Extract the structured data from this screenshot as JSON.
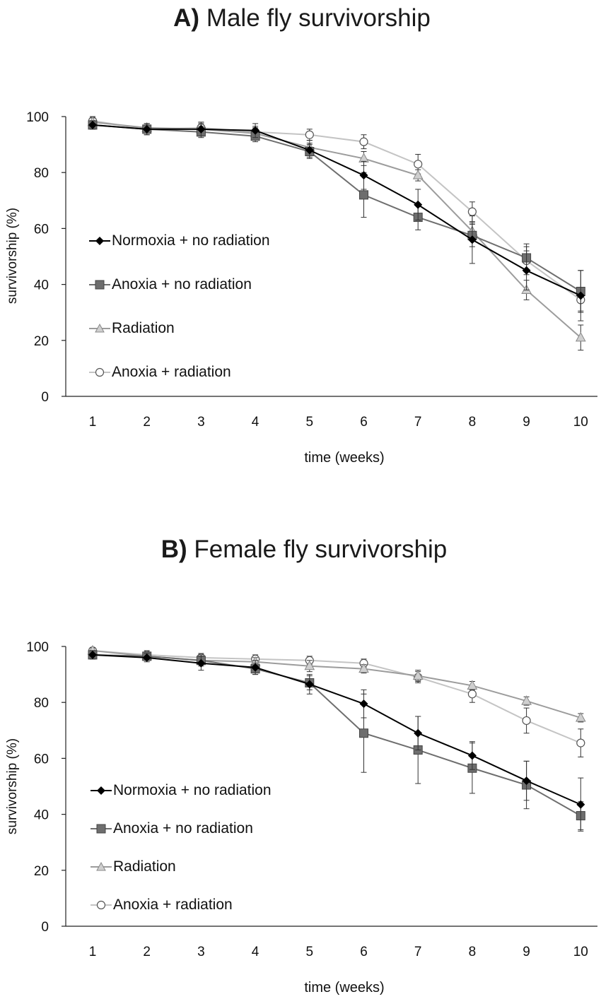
{
  "chart_data": [
    {
      "type": "line",
      "panel_letter": "A)",
      "title": "Male fly survivorship",
      "xlabel": "time (weeks)",
      "ylabel": "survivorship (%)",
      "x": [
        1,
        2,
        3,
        4,
        5,
        6,
        7,
        8,
        9,
        10
      ],
      "ylim": [
        0,
        100
      ],
      "yticks": [
        0,
        20,
        40,
        60,
        80,
        100
      ],
      "grid": false,
      "legend_position": "left-middle",
      "series": [
        {
          "name": "Normoxia + no radiation",
          "marker": "diamond",
          "color": "#000000",
          "marker_fill": "#000000",
          "values": [
            97,
            95.5,
            95.5,
            95,
            88,
            79,
            68.5,
            56,
            45,
            36
          ],
          "errors": [
            1.5,
            2,
            2.5,
            2.5,
            2.5,
            5,
            5.5,
            8.5,
            7,
            9
          ]
        },
        {
          "name": "Anoxia + no radiation",
          "marker": "square",
          "color": "#6e6e6e",
          "marker_fill": "#6e6e6e",
          "values": [
            97,
            95.5,
            94.5,
            93,
            87.5,
            72,
            64,
            57.5,
            49.5,
            37.5
          ],
          "errors": [
            1.5,
            1.5,
            2,
            2,
            2.5,
            8,
            4.5,
            4,
            5,
            7.5
          ]
        },
        {
          "name": "Radiation",
          "marker": "triangle",
          "color": "#9c9c9c",
          "marker_fill": "#cfcfcf",
          "values": [
            98,
            96,
            95.5,
            94,
            89,
            85,
            79,
            59,
            38,
            21
          ],
          "errors": [
            1.5,
            1.5,
            2,
            2,
            2.5,
            2.5,
            2,
            3,
            3.5,
            4.5
          ]
        },
        {
          "name": "Anoxia + radiation",
          "marker": "circle",
          "color": "#c4c4c4",
          "marker_fill": "#ffffff",
          "values": [
            98.5,
            95.5,
            96,
            94.5,
            93.5,
            91,
            83,
            66,
            48.5,
            34.5
          ],
          "errors": [
            1.5,
            2,
            2,
            2,
            2,
            2.5,
            3.5,
            3.5,
            5,
            4
          ]
        }
      ]
    },
    {
      "type": "line",
      "panel_letter": "B)",
      "title": "Female fly survivorship",
      "xlabel": "time (weeks)",
      "ylabel": "survivorship (%)",
      "x": [
        1,
        2,
        3,
        4,
        5,
        6,
        7,
        8,
        9,
        10
      ],
      "ylim": [
        0,
        100
      ],
      "yticks": [
        0,
        20,
        40,
        60,
        80,
        100
      ],
      "grid": false,
      "legend_position": "left-bottom",
      "series": [
        {
          "name": "Normoxia + no radiation",
          "marker": "diamond",
          "color": "#000000",
          "marker_fill": "#000000",
          "values": [
            97,
            96,
            94,
            92.5,
            86.5,
            79.5,
            69,
            61,
            52,
            43.5
          ],
          "errors": [
            1.5,
            1.5,
            2.5,
            2.5,
            3.5,
            5,
            6,
            5,
            7,
            9.5
          ]
        },
        {
          "name": "Anoxia + no radiation",
          "marker": "square",
          "color": "#6e6e6e",
          "marker_fill": "#6e6e6e",
          "values": [
            97,
            96.5,
            95,
            92,
            87,
            69,
            63,
            56.5,
            50.5,
            39.5
          ],
          "errors": [
            1.5,
            1.5,
            2,
            2,
            2.5,
            14,
            12,
            9,
            8.5,
            5
          ]
        },
        {
          "name": "Radiation",
          "marker": "triangle",
          "color": "#9c9c9c",
          "marker_fill": "#cfcfcf",
          "values": [
            98.5,
            96.5,
            95,
            94.5,
            93,
            92,
            89.5,
            86,
            80.5,
            74.5
          ],
          "errors": [
            1,
            1.5,
            1.5,
            1.5,
            2,
            1.5,
            2,
            1.5,
            1.5,
            1.5
          ]
        },
        {
          "name": "Anoxia + radiation",
          "marker": "circle",
          "color": "#c4c4c4",
          "marker_fill": "#ffffff",
          "values": [
            98.5,
            97,
            96,
            95.5,
            95,
            94,
            89,
            83,
            73.5,
            65.5
          ],
          "errors": [
            1,
            1.5,
            1.5,
            1.5,
            1.5,
            1.5,
            2,
            3,
            4.5,
            5
          ]
        }
      ]
    }
  ]
}
